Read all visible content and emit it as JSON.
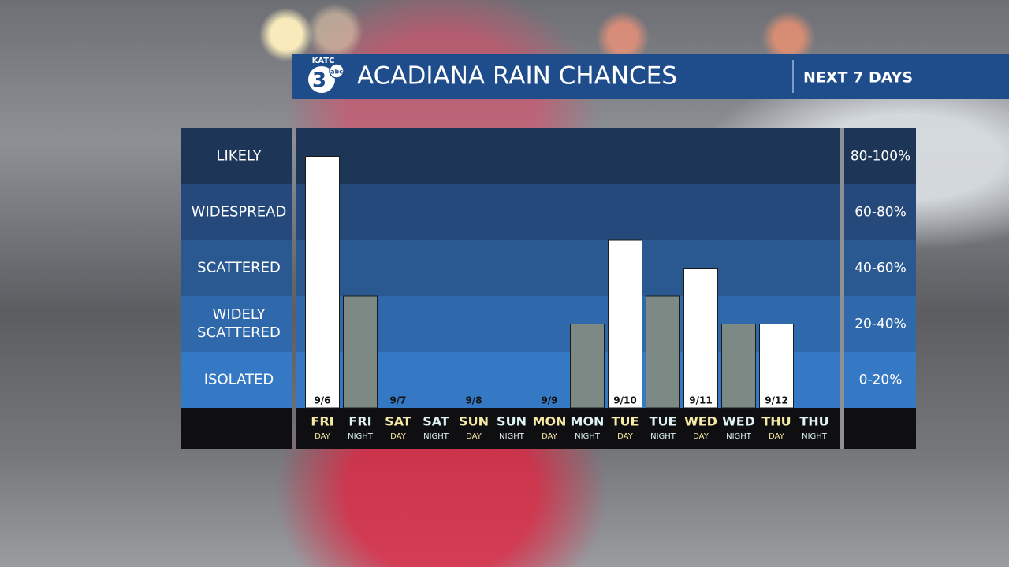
{
  "logo": {
    "station": "KATC",
    "channel": "3",
    "network": "abc"
  },
  "chart_data": {
    "type": "bar",
    "title": "ACADIANA RAIN CHANCES",
    "subtitle": "NEXT 7 DAYS",
    "categories": [
      "FRI",
      "FRI",
      "SAT",
      "SAT",
      "SUN",
      "SUN",
      "MON",
      "MON",
      "TUE",
      "TUE",
      "WED",
      "WED",
      "THU",
      "THU"
    ],
    "periods": [
      "DAY",
      "NIGHT",
      "DAY",
      "NIGHT",
      "DAY",
      "NIGHT",
      "DAY",
      "NIGHT",
      "DAY",
      "NIGHT",
      "DAY",
      "NIGHT",
      "DAY",
      "NIGHT"
    ],
    "dates": [
      "9/6",
      null,
      "9/7",
      null,
      "9/8",
      null,
      "9/9",
      null,
      "9/10",
      null,
      "9/11",
      null,
      "9/12",
      null
    ],
    "values": [
      90,
      40,
      0,
      0,
      0,
      0,
      0,
      30,
      60,
      40,
      50,
      30,
      30,
      0
    ],
    "colors": [
      "#ffffff",
      "#7c8985",
      "#ffffff",
      "#7c8985",
      "#ffffff",
      "#7c8985",
      "#ffffff",
      "#7c8985",
      "#ffffff",
      "#7c8985",
      "#ffffff",
      "#7c8985",
      "#ffffff",
      "#7c8985"
    ],
    "label_colors": [
      "#f6eaa6",
      "#dff2f4",
      "#f6eaa6",
      "#dff2f4",
      "#f6eaa6",
      "#dff2f4",
      "#f6eaa6",
      "#dff2f4",
      "#f6eaa6",
      "#dff2f4",
      "#f6eaa6",
      "#dff2f4",
      "#f6eaa6",
      "#dff2f4"
    ],
    "ylim": [
      0,
      100
    ],
    "yticks": [
      0,
      20,
      40,
      60,
      80,
      100
    ],
    "bands": [
      {
        "label": "ISOLATED",
        "range": "0-20%",
        "color": "#3579c4"
      },
      {
        "label": "WIDELY SCATTERED",
        "range": "20-40%",
        "color": "#2f69ac"
      },
      {
        "label": "SCATTERED",
        "range": "40-60%",
        "color": "#2a5992"
      },
      {
        "label": "WIDESPREAD",
        "range": "60-80%",
        "color": "#24497a"
      },
      {
        "label": "LIKELY",
        "range": "80-100%",
        "color": "#1d3657"
      }
    ]
  }
}
